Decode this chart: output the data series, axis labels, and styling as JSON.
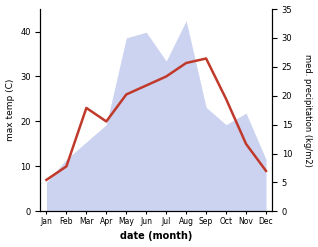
{
  "months": [
    "Jan",
    "Feb",
    "Mar",
    "Apr",
    "May",
    "Jun",
    "Jul",
    "Aug",
    "Sep",
    "Oct",
    "Nov",
    "Dec"
  ],
  "temperature": [
    7,
    10,
    23,
    20,
    26,
    28,
    30,
    33,
    34,
    25,
    15,
    9
  ],
  "precipitation": [
    5,
    9,
    12,
    15,
    30,
    31,
    26,
    33,
    18,
    15,
    17,
    9
  ],
  "temp_ylim": [
    0,
    45
  ],
  "temp_yticks": [
    0,
    10,
    20,
    30,
    40
  ],
  "precip_ylim": [
    0,
    35
  ],
  "precip_yticks": [
    0,
    5,
    10,
    15,
    20,
    25,
    30,
    35
  ],
  "temp_color": "#c0392b",
  "precip_fill_color": "#b0bce8",
  "precip_fill_alpha": 0.65,
  "ylabel_left": "max temp (C)",
  "ylabel_right": "med. precipitation (kg/m2)",
  "xlabel": "date (month)",
  "linewidth": 1.8,
  "xlim_left": -0.3,
  "xlim_right": 11.3
}
